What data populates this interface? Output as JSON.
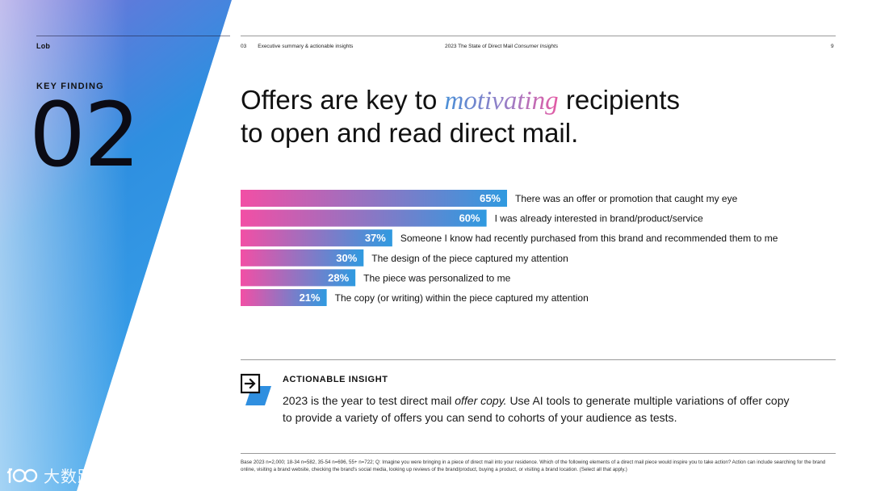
{
  "header": {
    "logo": "Lob",
    "section_number": "03",
    "section_title": "Executive summary & actionable insights",
    "report_title_main": "2023 The State of Direct Mail",
    "report_title_italic": "Consumer Insights",
    "page_number": "9"
  },
  "key_finding": {
    "label": "KEY FINDING",
    "number": "02"
  },
  "headline": {
    "before": "Offers are key to",
    "accent": "motivating",
    "after_line1": "recipients",
    "line2": "to open and read direct mail."
  },
  "colors": {
    "bar_start": "#f24fa5",
    "bar_end": "#2f9ae0",
    "wedge_top": "#7a6fd8",
    "wedge_mid": "#2e8fe0",
    "wedge_bottom": "#3aa2ea"
  },
  "chart_data": {
    "type": "bar",
    "orientation": "horizontal",
    "categories": [
      "There was an offer or promotion that caught my eye",
      "I was already interested in brand/product/service",
      "Someone I know had recently purchased from this brand and recommended them to me",
      "The design of the piece captured my attention",
      "The piece was personalized to me",
      "The copy (or writing) within the piece captured my attention"
    ],
    "values": [
      65,
      60,
      37,
      30,
      28,
      21
    ],
    "value_labels": [
      "65%",
      "60%",
      "37%",
      "30%",
      "28%",
      "21%"
    ],
    "xlim": [
      0,
      65
    ]
  },
  "insight": {
    "title": "ACTIONABLE INSIGHT",
    "body_before": "2023 is the year to test direct mail",
    "body_italic": "offer copy.",
    "body_after": "Use AI tools to generate multiple variations of offer copy to provide a variety of offers you can send to cohorts of your audience as tests.",
    "icon": "arrow-box-icon"
  },
  "footnote": "Base 2023 n=2,000; 18-34 n=582, 35-54 n=696, 55+ n=722; Q: Imagine you were bringing in a piece of direct mail into your residence. Which of the following elements of a direct mail piece would inspire you to take action? Action can include searching for the brand online, visiting a brand website, checking the brand's social media, looking up reviews of the brand/product, buying a product, or visiting a brand location. (Select all that apply.)",
  "watermark": {
    "text": "大数跨境",
    "icon": "watermark-logo-icon"
  }
}
